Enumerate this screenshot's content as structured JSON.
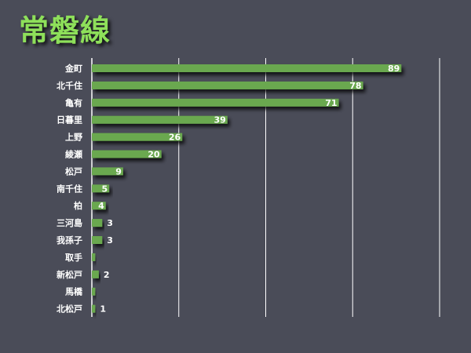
{
  "page": {
    "title": "常磐線",
    "colors": {
      "background": "#4a4c58",
      "bar": "#6aa84f",
      "title": "#8ee05a",
      "grid": "#ffffff",
      "text": "#ffffff"
    }
  },
  "chart_data": {
    "type": "bar",
    "orientation": "horizontal",
    "title": "常磐線",
    "xlabel": "",
    "ylabel": "",
    "xlim": [
      0,
      100
    ],
    "grid": true,
    "categories": [
      "金町",
      "北千住",
      "亀有",
      "日暮里",
      "上野",
      "綾瀬",
      "松戸",
      "南千住",
      "柏",
      "三河島",
      "我孫子",
      "取手",
      "新松戸",
      "馬橋",
      "北松戸"
    ],
    "values": [
      89,
      78,
      71,
      39,
      26,
      20,
      9,
      5,
      4,
      3,
      3,
      1,
      2,
      1,
      1
    ],
    "value_labels": [
      "89",
      "78",
      "71",
      "39",
      "26",
      "20",
      "9",
      "5",
      "4",
      "3",
      "3",
      "",
      "2",
      "",
      "1"
    ]
  }
}
